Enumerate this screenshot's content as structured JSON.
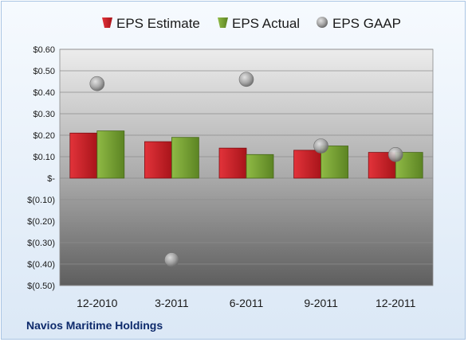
{
  "company_name": "Navios Maritime Holdings",
  "colors": {
    "estimate": "#cc1f26",
    "actual": "#76a02f",
    "gaap": "#9a9a9a"
  },
  "chart_data": {
    "type": "bar",
    "categories": [
      "12-2010",
      "3-2011",
      "6-2011",
      "9-2011",
      "12-2011"
    ],
    "series": [
      {
        "name": "EPS Estimate",
        "kind": "bar",
        "values": [
          0.21,
          0.17,
          0.14,
          0.13,
          0.12
        ]
      },
      {
        "name": "EPS Actual",
        "kind": "bar",
        "values": [
          0.22,
          0.19,
          0.11,
          0.15,
          0.12
        ]
      },
      {
        "name": "EPS GAAP",
        "kind": "scatter",
        "values": [
          0.44,
          -0.38,
          0.46,
          0.15,
          0.11
        ]
      }
    ],
    "ylim": [
      -0.5,
      0.6
    ],
    "yticks": [
      0.6,
      0.5,
      0.4,
      0.3,
      0.2,
      0.1,
      0.0,
      -0.1,
      -0.2,
      -0.3,
      -0.4,
      -0.5
    ],
    "ytick_labels": [
      "$0.60",
      "$0.50",
      "$0.40",
      "$0.30",
      "$0.20",
      "$0.10",
      "$-",
      "$(0.10)",
      "$(0.20)",
      "$(0.30)",
      "$(0.40)",
      "$(0.50)"
    ],
    "legend_position": "top",
    "grid": true,
    "title": "",
    "xlabel": "",
    "ylabel": ""
  }
}
